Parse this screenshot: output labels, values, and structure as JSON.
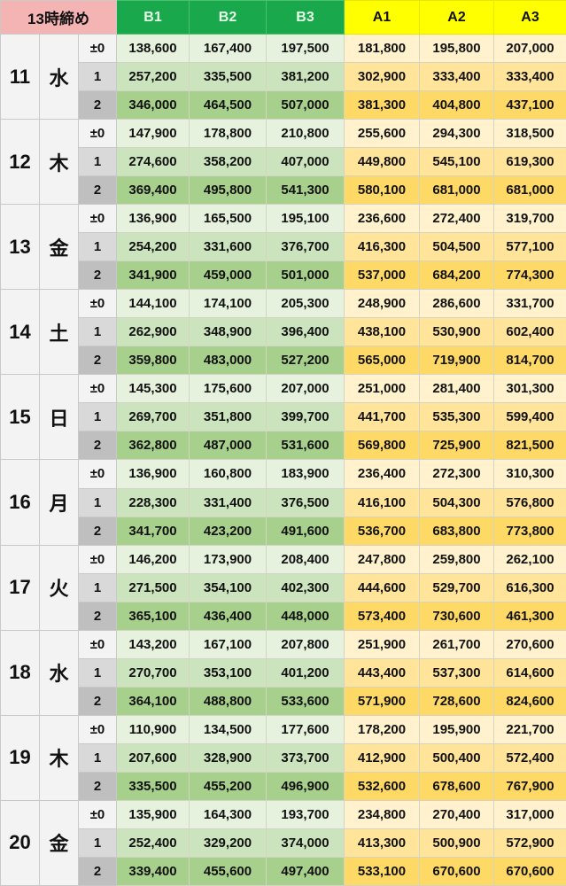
{
  "header": {
    "title": "13時締め",
    "columns": [
      "B1",
      "B2",
      "B3",
      "A1",
      "A2",
      "A3"
    ]
  },
  "colors": {
    "title_bg": "#f4b4b4",
    "b_header": "#1aa84c",
    "a_header": "#ffff00"
  },
  "sub_labels": [
    "±0",
    "1",
    "2"
  ],
  "days": [
    {
      "day": "11",
      "weekday": "水",
      "rows": [
        [
          "138,600",
          "167,400",
          "197,500",
          "181,800",
          "195,800",
          "207,000"
        ],
        [
          "257,200",
          "335,500",
          "381,200",
          "302,900",
          "333,400",
          "333,400"
        ],
        [
          "346,000",
          "464,500",
          "507,000",
          "381,300",
          "404,800",
          "437,100"
        ]
      ]
    },
    {
      "day": "12",
      "weekday": "木",
      "rows": [
        [
          "147,900",
          "178,800",
          "210,800",
          "255,600",
          "294,300",
          "318,500"
        ],
        [
          "274,600",
          "358,200",
          "407,000",
          "449,800",
          "545,100",
          "619,300"
        ],
        [
          "369,400",
          "495,800",
          "541,300",
          "580,100",
          "681,000",
          "681,000"
        ]
      ]
    },
    {
      "day": "13",
      "weekday": "金",
      "rows": [
        [
          "136,900",
          "165,500",
          "195,100",
          "236,600",
          "272,400",
          "319,700"
        ],
        [
          "254,200",
          "331,600",
          "376,700",
          "416,300",
          "504,500",
          "577,100"
        ],
        [
          "341,900",
          "459,000",
          "501,000",
          "537,000",
          "684,200",
          "774,300"
        ]
      ]
    },
    {
      "day": "14",
      "weekday": "土",
      "rows": [
        [
          "144,100",
          "174,100",
          "205,300",
          "248,900",
          "286,600",
          "331,700"
        ],
        [
          "262,900",
          "348,900",
          "396,400",
          "438,100",
          "530,900",
          "602,400"
        ],
        [
          "359,800",
          "483,000",
          "527,200",
          "565,000",
          "719,900",
          "814,700"
        ]
      ]
    },
    {
      "day": "15",
      "weekday": "日",
      "rows": [
        [
          "145,300",
          "175,600",
          "207,000",
          "251,000",
          "281,400",
          "301,300"
        ],
        [
          "269,700",
          "351,800",
          "399,700",
          "441,700",
          "535,300",
          "599,400"
        ],
        [
          "362,800",
          "487,000",
          "531,600",
          "569,800",
          "725,900",
          "821,500"
        ]
      ]
    },
    {
      "day": "16",
      "weekday": "月",
      "rows": [
        [
          "136,900",
          "160,800",
          "183,900",
          "236,400",
          "272,300",
          "310,300"
        ],
        [
          "228,300",
          "331,400",
          "376,500",
          "416,100",
          "504,300",
          "576,800"
        ],
        [
          "341,700",
          "423,200",
          "491,600",
          "536,700",
          "683,800",
          "773,800"
        ]
      ]
    },
    {
      "day": "17",
      "weekday": "火",
      "rows": [
        [
          "146,200",
          "173,900",
          "208,400",
          "247,800",
          "259,800",
          "262,100"
        ],
        [
          "271,500",
          "354,100",
          "402,300",
          "444,600",
          "529,700",
          "616,300"
        ],
        [
          "365,100",
          "436,400",
          "448,000",
          "573,400",
          "730,600",
          "461,300"
        ]
      ]
    },
    {
      "day": "18",
      "weekday": "水",
      "rows": [
        [
          "143,200",
          "167,100",
          "207,800",
          "251,900",
          "261,700",
          "270,600"
        ],
        [
          "270,700",
          "353,100",
          "401,200",
          "443,400",
          "537,300",
          "614,600"
        ],
        [
          "364,100",
          "488,800",
          "533,600",
          "571,900",
          "728,600",
          "824,600"
        ]
      ]
    },
    {
      "day": "19",
      "weekday": "木",
      "rows": [
        [
          "110,900",
          "134,500",
          "177,600",
          "178,200",
          "195,900",
          "221,700"
        ],
        [
          "207,600",
          "328,900",
          "373,700",
          "412,900",
          "500,400",
          "572,400"
        ],
        [
          "335,500",
          "455,200",
          "496,900",
          "532,600",
          "678,600",
          "767,900"
        ]
      ]
    },
    {
      "day": "20",
      "weekday": "金",
      "rows": [
        [
          "135,900",
          "164,300",
          "193,700",
          "234,800",
          "270,400",
          "317,000"
        ],
        [
          "252,400",
          "329,200",
          "374,000",
          "413,300",
          "500,900",
          "572,900"
        ],
        [
          "339,400",
          "455,600",
          "497,400",
          "533,100",
          "670,600",
          "670,600"
        ]
      ]
    }
  ]
}
